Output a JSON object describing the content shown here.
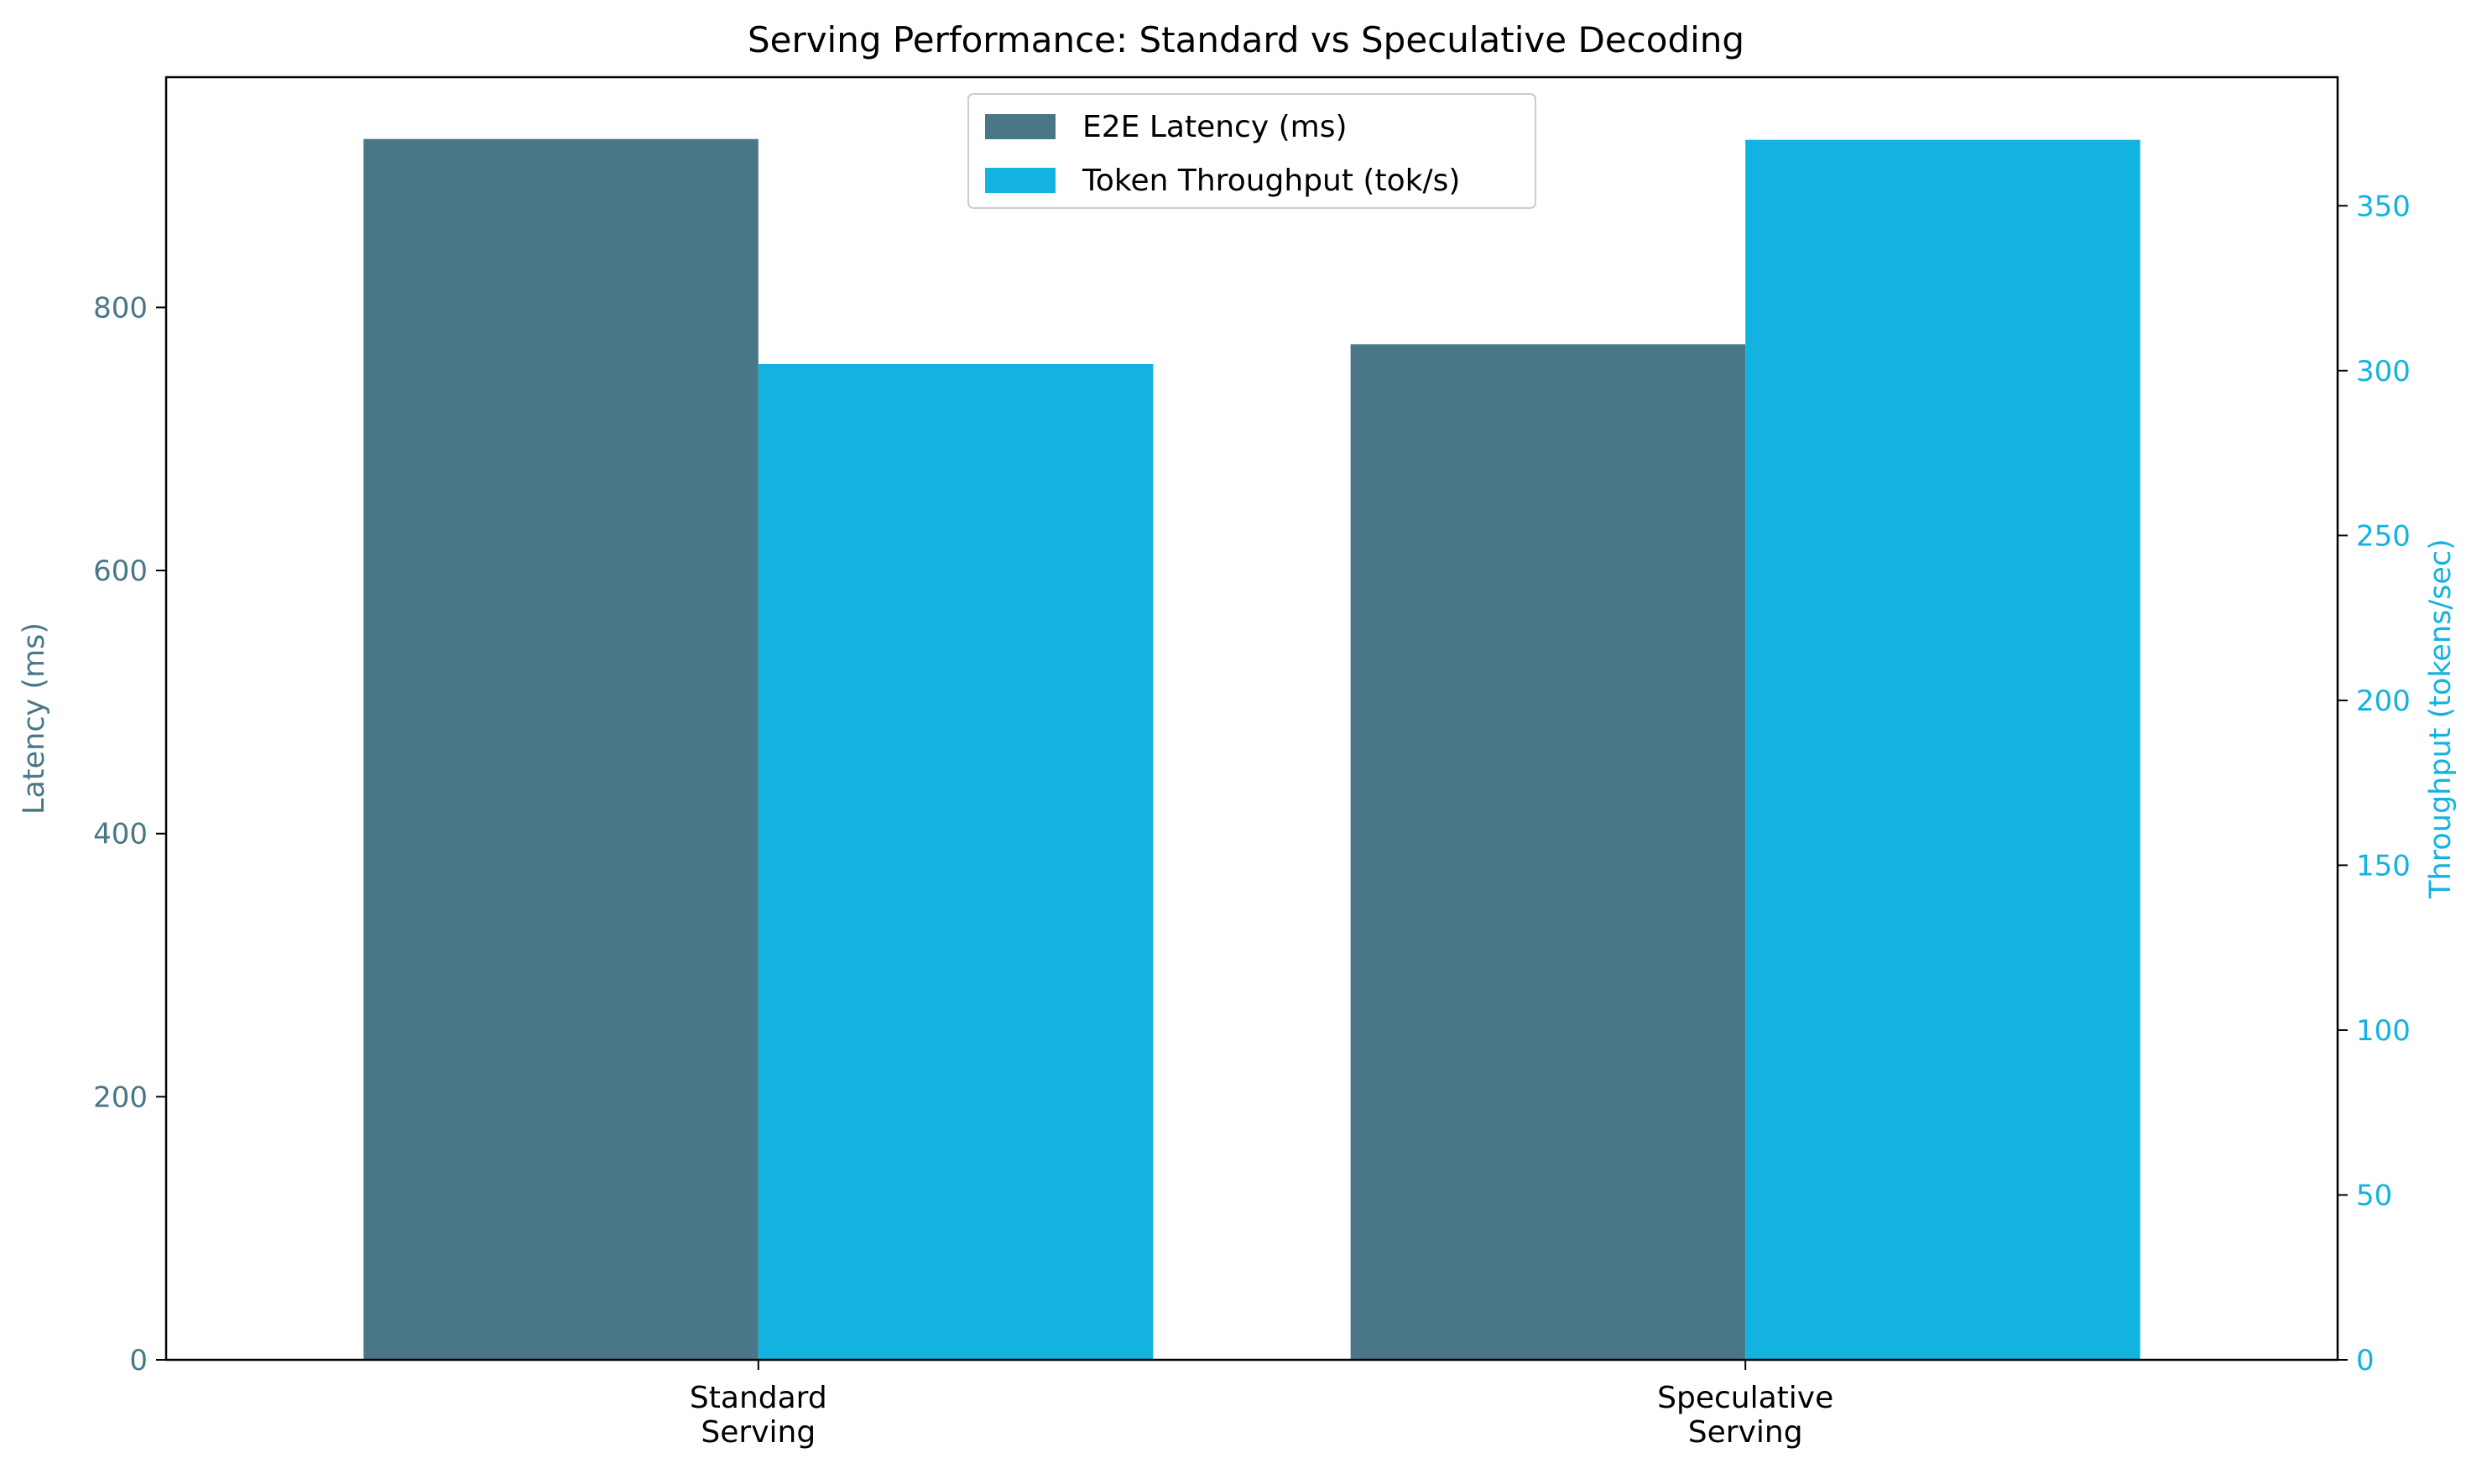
{
  "chart_data": {
    "type": "bar",
    "title": "Serving Performance: Standard vs Speculative Decoding",
    "categories": [
      [
        "Standard",
        "Serving"
      ],
      [
        "Speculative",
        "Serving"
      ]
    ],
    "series": [
      {
        "name": "E2E Latency (ms)",
        "axis": "left",
        "color": "#4a7787",
        "values": [
          928,
          772
        ]
      },
      {
        "name": "Token Throughput (tok/s)",
        "axis": "right",
        "color": "#12b3e0",
        "values": [
          302,
          370
        ]
      }
    ],
    "ylabel_left": "Latency (ms)",
    "ylabel_right": "Throughput (tokens/sec)",
    "ylim_left": [
      0,
      975
    ],
    "ylim_right": [
      0,
      389
    ],
    "yticks_left": [
      0,
      200,
      400,
      600,
      800
    ],
    "yticks_right": [
      0,
      50,
      100,
      150,
      200,
      250,
      300,
      350
    ],
    "left_axis_color": "#4a7787",
    "right_axis_color": "#12b3e0",
    "legend_position": "upper center",
    "grid": false
  }
}
